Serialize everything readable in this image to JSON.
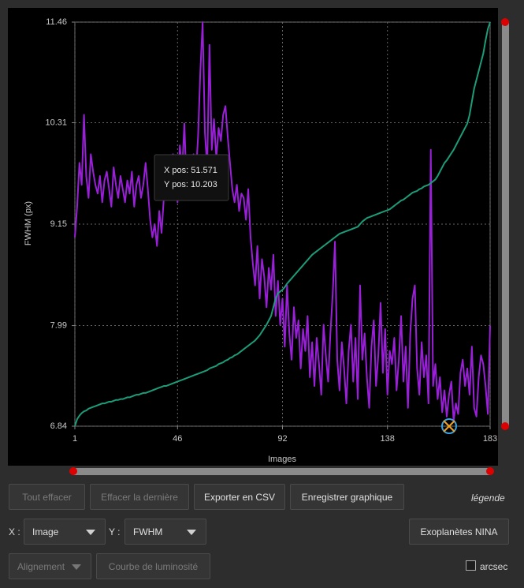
{
  "chart_data": {
    "type": "line",
    "x_label": "Images",
    "y_label": "FWHM (px)",
    "xlim": [
      1,
      183
    ],
    "xticks": [
      1,
      46,
      92,
      138,
      183
    ],
    "ylim": [
      6.84,
      11.46
    ],
    "yticks": [
      6.84,
      7.99,
      9.15,
      10.31,
      11.46
    ],
    "grid": true,
    "tooltip": [
      "X pos: 51.571",
      "Y pos: 10.203"
    ],
    "x": [
      1,
      2,
      3,
      4,
      5,
      6,
      7,
      8,
      9,
      10,
      11,
      12,
      13,
      14,
      15,
      16,
      17,
      18,
      19,
      20,
      21,
      22,
      23,
      24,
      25,
      26,
      27,
      28,
      29,
      30,
      31,
      32,
      33,
      34,
      35,
      36,
      37,
      38,
      39,
      40,
      41,
      42,
      43,
      44,
      45,
      46,
      47,
      48,
      49,
      50,
      51,
      52,
      53,
      54,
      55,
      56,
      57,
      58,
      59,
      60,
      61,
      62,
      63,
      64,
      65,
      66,
      67,
      68,
      69,
      70,
      71,
      72,
      73,
      74,
      75,
      76,
      77,
      78,
      79,
      80,
      81,
      82,
      83,
      84,
      85,
      86,
      87,
      88,
      89,
      90,
      91,
      92,
      93,
      94,
      95,
      96,
      97,
      98,
      99,
      100,
      101,
      102,
      103,
      104,
      105,
      106,
      107,
      108,
      109,
      110,
      111,
      112,
      113,
      114,
      115,
      116,
      117,
      118,
      119,
      120,
      121,
      122,
      123,
      124,
      125,
      126,
      127,
      128,
      129,
      130,
      131,
      132,
      133,
      134,
      135,
      136,
      137,
      138,
      139,
      140,
      141,
      142,
      143,
      144,
      145,
      146,
      147,
      148,
      149,
      150,
      151,
      152,
      153,
      154,
      155,
      156,
      157,
      158,
      159,
      160,
      161,
      162,
      163,
      164,
      165,
      166,
      167,
      168,
      169,
      170,
      171,
      172,
      173,
      174,
      175,
      176,
      177,
      178,
      179,
      180,
      181,
      182,
      183
    ],
    "series": [
      {
        "color": "#9a1fd8",
        "values": [
          9.0,
          9.35,
          9.85,
          9.6,
          10.4,
          9.7,
          9.45,
          9.95,
          9.75,
          9.6,
          9.5,
          9.7,
          9.4,
          9.65,
          9.75,
          9.55,
          9.35,
          9.8,
          9.6,
          9.45,
          9.7,
          9.55,
          9.4,
          9.65,
          9.5,
          9.75,
          9.35,
          9.6,
          9.7,
          9.45,
          9.6,
          9.85,
          9.55,
          9.2,
          9.0,
          9.15,
          8.9,
          9.3,
          9.05,
          9.45,
          9.6,
          9.8,
          9.5,
          9.95,
          9.7,
          9.4,
          10.05,
          9.75,
          10.3,
          9.55,
          9.85,
          9.6,
          9.95,
          9.7,
          10.15,
          10.9,
          11.46,
          10.2,
          9.8,
          11.2,
          10.0,
          10.35,
          9.9,
          10.25,
          10.1,
          10.4,
          10.5,
          10.15,
          9.85,
          9.55,
          9.4,
          9.6,
          9.3,
          9.5,
          9.45,
          9.2,
          9.55,
          9.0,
          8.7,
          8.45,
          8.9,
          8.3,
          8.75,
          8.55,
          8.2,
          8.65,
          8.4,
          8.8,
          8.1,
          8.5,
          8.0,
          8.3,
          7.75,
          8.45,
          7.9,
          7.6,
          8.2,
          7.85,
          8.05,
          7.5,
          7.95,
          7.7,
          8.1,
          7.4,
          7.8,
          7.3,
          7.85,
          7.55,
          7.2,
          8.0,
          7.65,
          7.35,
          7.9,
          8.35,
          8.95,
          7.6,
          7.25,
          7.8,
          7.5,
          7.1,
          7.7,
          8.0,
          7.35,
          7.85,
          7.15,
          8.45,
          7.6,
          7.9,
          7.4,
          7.05,
          7.75,
          8.05,
          7.3,
          7.65,
          8.25,
          7.45,
          7.95,
          7.2,
          7.7,
          7.55,
          7.85,
          7.25,
          7.6,
          8.1,
          7.35,
          7.75,
          7.05,
          7.9,
          8.3,
          8.45,
          7.5,
          7.2,
          7.8,
          7.4,
          7.65,
          7.1,
          10.0,
          7.3,
          7.55,
          7.15,
          7.4,
          7.0,
          7.25,
          6.95,
          7.2,
          7.35,
          6.9,
          7.1,
          6.98,
          7.45,
          7.6,
          7.3,
          7.5,
          7.2,
          7.75,
          7.05,
          6.95,
          7.4,
          7.65,
          7.55,
          7.3,
          6.98,
          7.99
        ]
      },
      {
        "color": "#1c9c78",
        "values": [
          6.84,
          6.92,
          6.96,
          6.99,
          7.01,
          7.02,
          7.04,
          7.05,
          7.06,
          7.07,
          7.08,
          7.09,
          7.1,
          7.1,
          7.11,
          7.12,
          7.12,
          7.13,
          7.14,
          7.14,
          7.15,
          7.15,
          7.16,
          7.17,
          7.17,
          7.18,
          7.19,
          7.2,
          7.2,
          7.21,
          7.22,
          7.22,
          7.23,
          7.24,
          7.25,
          7.26,
          7.27,
          7.28,
          7.29,
          7.3,
          7.3,
          7.31,
          7.32,
          7.33,
          7.34,
          7.35,
          7.36,
          7.37,
          7.38,
          7.39,
          7.4,
          7.41,
          7.42,
          7.43,
          7.44,
          7.45,
          7.46,
          7.47,
          7.48,
          7.5,
          7.51,
          7.52,
          7.53,
          7.55,
          7.56,
          7.57,
          7.59,
          7.6,
          7.62,
          7.63,
          7.65,
          7.66,
          7.68,
          7.7,
          7.72,
          7.74,
          7.76,
          7.78,
          7.8,
          7.82,
          7.85,
          7.88,
          7.92,
          7.96,
          8.0,
          8.05,
          8.1,
          8.2,
          8.3,
          8.36,
          8.38,
          8.4,
          8.43,
          8.47,
          8.5,
          8.53,
          8.56,
          8.59,
          8.62,
          8.65,
          8.68,
          8.71,
          8.74,
          8.77,
          8.8,
          8.82,
          8.84,
          8.86,
          8.88,
          8.9,
          8.92,
          8.94,
          8.96,
          8.98,
          9.0,
          9.02,
          9.04,
          9.05,
          9.06,
          9.07,
          9.08,
          9.09,
          9.1,
          9.11,
          9.12,
          9.15,
          9.18,
          9.2,
          9.22,
          9.23,
          9.24,
          9.25,
          9.26,
          9.27,
          9.28,
          9.29,
          9.3,
          9.31,
          9.32,
          9.34,
          9.36,
          9.38,
          9.4,
          9.42,
          9.43,
          9.45,
          9.47,
          9.49,
          9.51,
          9.52,
          9.53,
          9.55,
          9.56,
          9.58,
          9.59,
          9.6,
          9.62,
          9.64,
          9.66,
          9.7,
          9.75,
          9.8,
          9.85,
          9.88,
          9.92,
          9.96,
          10.0,
          10.05,
          10.1,
          10.15,
          10.2,
          10.25,
          10.3,
          10.4,
          10.55,
          10.7,
          10.8,
          10.9,
          11.0,
          11.1,
          11.25,
          11.38,
          11.46
        ]
      }
    ]
  },
  "controls": {
    "clear_all": "Tout effacer",
    "clear_last": "Effacer la dernière",
    "export_csv": "Exporter en CSV",
    "save_chart": "Enregistrer graphique",
    "legend": "légende",
    "x_label": "X :",
    "x_select": "Image",
    "y_label": "Y :",
    "y_select": "FWHM",
    "exoplanets": "Exoplanètes NINA",
    "alignment": "Alignement",
    "light_curve": "Courbe de luminosité",
    "arcsec": "arcsec"
  }
}
